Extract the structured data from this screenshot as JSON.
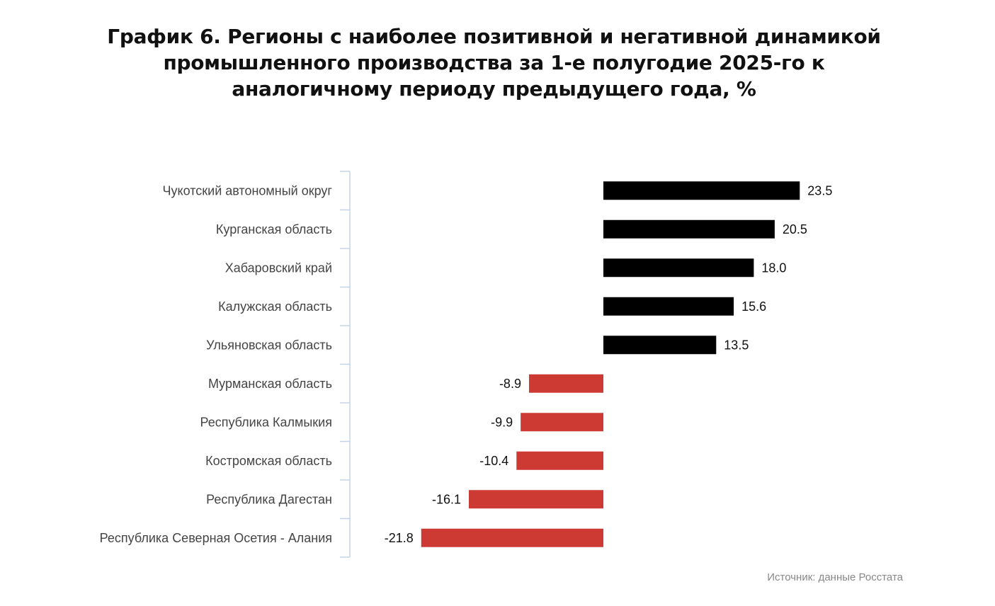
{
  "title_lines": [
    "График 6. Регионы с наиболее позитивной и негативной динамикой",
    "промышленного производства за 1-е полугодие 2025-го к",
    "аналогичному периоду предыдущего года, %"
  ],
  "source": "Источник: данные Росстата",
  "colors": {
    "positive": "#000000",
    "negative": "#cc3a33",
    "axis": "#c5d3e6"
  },
  "chart_data": {
    "type": "bar",
    "orientation": "horizontal",
    "title": "График 6. Регионы с наиболее позитивной и негативной динамикой промышленного производства за 1-е полугодие 2025-го к аналогичному периоду предыдущего года, %",
    "categories": [
      "Чукотский автономный округ",
      "Курганская область",
      "Хабаровский край",
      "Калужская область",
      "Ульяновская область",
      "Мурманская область",
      "Республика Калмыкия",
      "Костромская область",
      "Республика Дагестан",
      "Республика Северная Осетия - Алания"
    ],
    "values": [
      23.5,
      20.5,
      18.0,
      15.6,
      13.5,
      -8.9,
      -9.9,
      -10.4,
      -16.1,
      -21.8
    ],
    "labels": [
      "23.5",
      "20.5",
      "18.0",
      "15.6",
      "13.5",
      "-8.9",
      "-9.9",
      "-10.4",
      "-16.1",
      "-21.8"
    ],
    "xlim": [
      -30,
      30
    ],
    "grid": false,
    "legend": "none"
  }
}
